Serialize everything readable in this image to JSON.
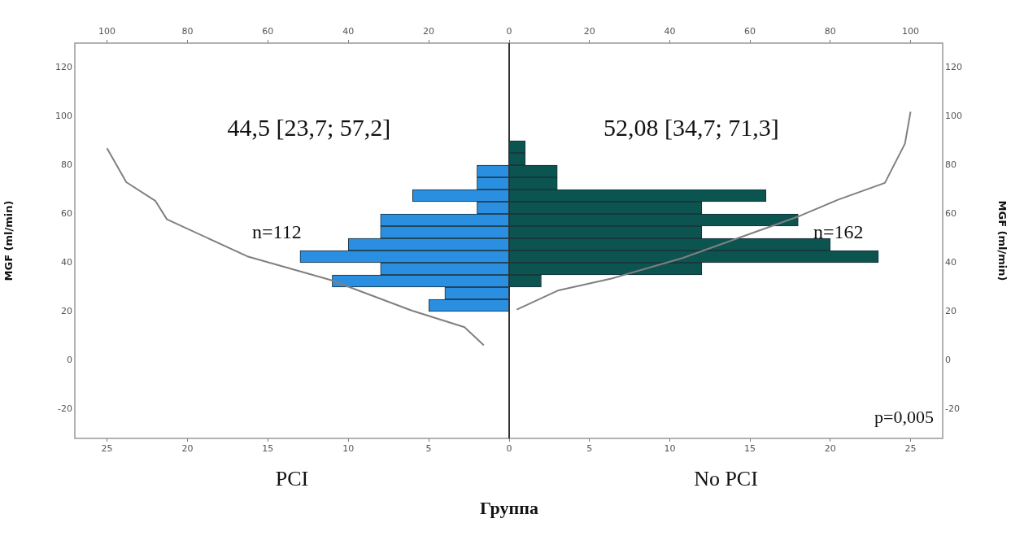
{
  "chart_data": [
    {
      "type": "histogram",
      "orientation": "horizontal",
      "xlabel": "PCI",
      "ylabel": "MGF (ml/min)",
      "bins": [
        20,
        25,
        30,
        35,
        40,
        45,
        50,
        55,
        60,
        65,
        70,
        75,
        80
      ],
      "series": [
        {
          "type": "histogram",
          "color": "#2a8fe0",
          "values": [
            5,
            4,
            11,
            8,
            13,
            10,
            8,
            8,
            2,
            6,
            2,
            2
          ]
        },
        {
          "type": "line",
          "axis": "x2",
          "color": "#808080",
          "x": [
            86.9,
            73,
            65.4,
            57.8,
            42.6,
            32.9,
            20.5,
            13.6,
            6.2
          ],
          "values": [
            100,
            95.2,
            88,
            85.1,
            65.1,
            44.4,
            24.4,
            11.1,
            6.3
          ]
        }
      ],
      "xlim": [
        27,
        0
      ],
      "xticks": [
        25,
        20,
        15,
        10,
        5,
        0
      ],
      "x2lim": [
        108,
        0
      ],
      "x2ticks": [
        100,
        80,
        60,
        40,
        20,
        0
      ],
      "ylim": [
        -32,
        130
      ],
      "yticks": [
        -20,
        0,
        20,
        40,
        60,
        80,
        100,
        120
      ],
      "grid": false,
      "legend": false,
      "annotations": [
        "44,5 [23,7; 57,2]",
        "n=112"
      ]
    },
    {
      "type": "histogram",
      "orientation": "horizontal",
      "xlabel": "No PCI",
      "ylabel": "MGF (ml/min)",
      "bins": [
        20,
        25,
        30,
        35,
        40,
        45,
        50,
        55,
        60,
        65,
        70,
        75,
        80,
        85,
        90
      ],
      "series": [
        {
          "type": "histogram",
          "color": "#0b5450",
          "values": [
            0,
            0,
            2,
            12,
            23,
            20,
            12,
            18,
            12,
            16,
            3,
            3,
            1,
            1
          ]
        },
        {
          "type": "line",
          "axis": "x2",
          "color": "#808080",
          "x": [
            101.9,
            88.8,
            72.7,
            65.8,
            59.1,
            41.9,
            33.6,
            28.7,
            20.8
          ],
          "values": [
            100,
            98.6,
            93.6,
            81.9,
            72.3,
            43.2,
            25.7,
            12.3,
            1.9
          ]
        }
      ],
      "xlim": [
        0,
        27
      ],
      "xticks": [
        {
          "value": 0,
          "label": null
        },
        5,
        10,
        15,
        20,
        25
      ],
      "x2lim": [
        0,
        108
      ],
      "x2ticks": [
        {
          "value": 0,
          "label": null
        },
        20,
        40,
        60,
        80,
        100
      ],
      "ylim": [
        -32,
        130
      ],
      "yticks": [
        -20,
        0,
        20,
        40,
        60,
        80,
        100,
        120
      ],
      "grid": false,
      "legend": false,
      "annotations": [
        "52,08 [34,7; 71,3]",
        "n=162",
        "p=0,005",
        "Группа"
      ]
    }
  ]
}
